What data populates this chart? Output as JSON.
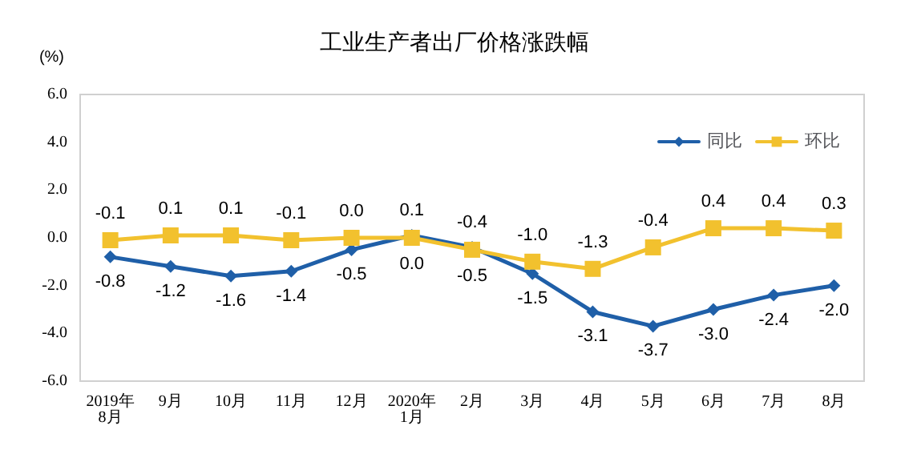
{
  "chart_data": {
    "type": "line",
    "title": "工业生产者出厂价格涨跌幅",
    "ylabel": "(%)",
    "categories": [
      "2019年\n8月",
      "9月",
      "10月",
      "11月",
      "12月",
      "2020年\n1月",
      "2月",
      "3月",
      "4月",
      "5月",
      "6月",
      "7月",
      "8月"
    ],
    "series": [
      {
        "name": "同比",
        "color": "#1f5fa8",
        "marker": "diamond",
        "values": [
          -0.8,
          -1.2,
          -1.6,
          -1.4,
          -0.5,
          0.1,
          -0.4,
          -1.5,
          -3.1,
          -3.7,
          -3.0,
          -2.4,
          -2.0
        ],
        "value_labels": [
          "-0.8",
          "-1.2",
          "-1.6",
          "-1.4",
          "-0.5",
          "0.1",
          "-0.4",
          "-1.5",
          "-3.1",
          "-3.7",
          "-3.0",
          "-2.4",
          "-2.0"
        ]
      },
      {
        "name": "环比",
        "color": "#f2c12e",
        "marker": "square",
        "values": [
          -0.1,
          0.1,
          0.1,
          -0.1,
          0.0,
          0.0,
          -0.5,
          -1.0,
          -1.3,
          -0.4,
          0.4,
          0.4,
          0.3
        ],
        "value_labels": [
          "-0.1",
          "0.1",
          "0.1",
          "-0.1",
          "0.0",
          "0.0",
          "-0.5",
          "-1.0",
          "-1.3",
          "-0.4",
          "0.4",
          "0.4",
          "0.3"
        ]
      }
    ],
    "ylim": [
      -6,
      6
    ],
    "yticks": [
      {
        "value": -6,
        "label": "-6.0"
      },
      {
        "value": -4,
        "label": "-4.0"
      },
      {
        "value": -2,
        "label": "-2.0"
      },
      {
        "value": 0,
        "label": "0.0"
      },
      {
        "value": 2,
        "label": "2.0"
      },
      {
        "value": 4,
        "label": "4.0"
      },
      {
        "value": 6,
        "label": "6.0"
      }
    ],
    "grid": false,
    "legend": "top right"
  }
}
